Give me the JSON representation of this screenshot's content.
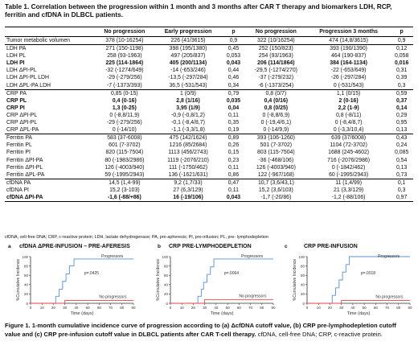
{
  "table_caption": "Table 1. Correlation between the progression within 1 month and 3 months after CAR T therapy and biomarkers LDH, RCP, ferritin and cfDNA in DLBCL patients.",
  "headers": [
    "",
    "No progression",
    "Early progression",
    "p",
    "No progression",
    "Progression 3 months",
    "p"
  ],
  "rows": [
    {
      "label": "Tumor metabolic volumen",
      "v": [
        "378 (10-16254)",
        "226 (41/3615)",
        "0,9",
        "322 (10/16254)",
        "474 (14,8/3615)",
        "0,9"
      ],
      "sep": true,
      "bold": false
    },
    {
      "label": "LDH PA",
      "v": [
        "271 (150-1198)",
        "398 (195/1380)",
        "0,45",
        "252 (150/823)",
        "393 (190/1390)",
        "0,12"
      ],
      "sep": true,
      "bold": false
    },
    {
      "label": "LDH PL",
      "v": [
        "258 (93-1963)",
        "497 (205/837)",
        "0,053",
        "254 (93/1963)",
        "464 (190-837)",
        "0,058"
      ],
      "sep": false,
      "bold": false
    },
    {
      "label": "LDH PI",
      "v": [
        "225 (114-1864)",
        "405 (200/1134)",
        "0,043",
        "206 (114/1864)",
        "384 (164-1134)",
        "0,016"
      ],
      "sep": false,
      "bold": true
    },
    {
      "label": "LDH ΔPI-PL",
      "v": [
        "-32 (-1274/649)",
        "-14 (-653/246)",
        "0,44",
        "-29,5 (-1274/270)",
        "-22 (-653/649)",
        "0,31"
      ],
      "sep": false,
      "bold": false
    },
    {
      "label": "LDH ΔPI-PL LDH",
      "v": [
        "-29 (-279/256)",
        "-13,5 (-297/284)",
        "0,46",
        "-37 (-279/232)",
        "-26 (-297/284)",
        "0,39"
      ],
      "sep": false,
      "bold": false
    },
    {
      "label": "LDH ΔPL-PA LDH",
      "v": [
        "-7 (-1373/393)",
        "36,5 (-531/543)",
        "0,34",
        "-6 (-1373/254)",
        "0 (-531/543)",
        "0,3"
      ],
      "sep": false,
      "bold": false
    },
    {
      "label": "CRP PA",
      "v": [
        "0,85 (0-15)",
        "1 (0/9)",
        "0,79",
        "0,8 (0/7)",
        "1,1 (0/15)",
        "0,59"
      ],
      "sep": true,
      "bold": false
    },
    {
      "label": "CRP PL",
      "v": [
        "0,4 (0-16)",
        "2,8 (1/16)",
        "0,035",
        "0,4 (0/16)",
        "2 (0-16)",
        "0,37"
      ],
      "sep": false,
      "bold": true
    },
    {
      "label": "CRP PI",
      "v": [
        "1,3 (0-25)",
        "3,95 (1/9)",
        "0,04",
        "0,8 (0/25)",
        "2,2 (1-9)",
        "0,14"
      ],
      "sep": false,
      "bold": true
    },
    {
      "label": "CRP ΔPI-PL",
      "v": [
        "0 (-8,8/11,9)",
        "-0,9 (-0,8/1,2)",
        "0,11",
        "0 (-8,8/6,9)",
        "0,8 (-8/11)",
        "0,29"
      ],
      "sep": false,
      "bold": false
    },
    {
      "label": "CRP ΔPI-PL",
      "v": [
        "-29 (-279/256)",
        "-0,1 (-8,4/8,7)",
        "0,35",
        "0 (-19,4/6,1)",
        "0 (-8,4/8,7)",
        "0,95"
      ],
      "sep": false,
      "bold": false
    },
    {
      "label": "CRP ΔPL-PA",
      "v": [
        "0 (-14/10)",
        "-1,1 (-3,3/1,8)",
        "0,19",
        "0 (-14/9,9)",
        "0 (-3,3/10,4)",
        "0,13"
      ],
      "sep": false,
      "bold": false
    },
    {
      "label": "Ferritin PA",
      "v": [
        "583 (37-6008)",
        "475 (142/1624)",
        "0,89",
        "393 (106-1260)",
        "639 (37/6008)",
        "0,43"
      ],
      "sep": true,
      "bold": false
    },
    {
      "label": "Ferritin PL",
      "v": [
        "601 (7-3702)",
        "1216 (85/2684)",
        "0,26",
        "501 (7-3702)",
        "1104 (72-3702)",
        "0,24"
      ],
      "sep": false,
      "bold": false
    },
    {
      "label": "Ferritin PI",
      "v": [
        "820 (115-7504)",
        "1113 (456/2743)",
        "0,15",
        "803 (115-7504)",
        "1688 (245-4602)",
        "0,085"
      ],
      "sep": false,
      "bold": false
    },
    {
      "label": "Ferritin ΔPI-PA",
      "v": [
        "80 (-1983/2986)",
        "1119 (-2076/210)",
        "0,23",
        "-36 (-468/106)",
        "716 (-2076/2986)",
        "0,54"
      ],
      "sep": false,
      "bold": false
    },
    {
      "label": "Ferritin ΔPI-PL",
      "v": [
        "126 (-4003/940)",
        "111 (-1750/462)",
        "0,11",
        "126 (-4003/940)",
        "0 (-1842/462)",
        "0,13"
      ],
      "sep": false,
      "bold": false
    },
    {
      "label": "Ferritin ΔPL-PA",
      "v": [
        "59 (-1995/2943)",
        "136 (-1621/631)",
        "0,86",
        "122 (-967/168)",
        "60 (-1995/2943)",
        "0,73"
      ],
      "sep": false,
      "bold": false
    },
    {
      "label": "cfDNA PA",
      "v": [
        "14,5 (1,4-99)",
        "9,2 (1,7/33)",
        "0,47",
        "10,7 (3,6/43,1)",
        "11 (1,4/99)",
        "0,1"
      ],
      "sep": true,
      "bold": false
    },
    {
      "label": "cfDNA PI",
      "v": [
        "15,2 (3-103)",
        "27 (6,3/129)",
        "0,11",
        "15,2 (3,6/103)",
        "21 (3,3/129)",
        "0,3"
      ],
      "sep": false,
      "bold": false
    },
    {
      "label": "cfDNA ΔPI-PA",
      "v": [
        "-1,6 (-88/+86)",
        "16 (-19/106)",
        "0,043",
        "-1,7 (-20/86)",
        "-1,2 (-88/106)",
        "0,97"
      ],
      "sep": false,
      "bold": true,
      "partial_bold": [
        0,
        1,
        2
      ]
    }
  ],
  "abbreviations": "cfDNA, cell-free DNA; CRP, c-reactive protein; LDH, lactate dehydrogenase; PA, pre-apheresis; PI, pre-infusion; PL, pre- lymphodepletion",
  "chart_data": [
    {
      "type": "line",
      "letter": "a",
      "title": "cfDNA ΔPRE-INFUSION – PRE-AFERESIS",
      "ylabel": "%Cumulative Incidence",
      "xlabel": "Time (days)",
      "xlim": [
        0,
        90
      ],
      "ylim": [
        0,
        100
      ],
      "xticks": [
        0,
        10,
        20,
        30,
        40,
        50,
        60,
        70,
        80,
        90
      ],
      "yticks": [
        0,
        20,
        40,
        60,
        80,
        100
      ],
      "pvalue": "p=.0425",
      "series": [
        {
          "name": "Progressors",
          "color": "#5b8fd4",
          "x": [
            0,
            22,
            22,
            25,
            25,
            28,
            28,
            31,
            31,
            34,
            34,
            38,
            38,
            90
          ],
          "y": [
            0,
            0,
            15,
            15,
            30,
            30,
            47,
            47,
            63,
            63,
            80,
            80,
            95,
            95
          ]
        },
        {
          "name": "No progressors",
          "color": "#e04444",
          "x": [
            0,
            30,
            30,
            90
          ],
          "y": [
            0,
            0,
            6,
            6
          ]
        }
      ]
    },
    {
      "type": "line",
      "letter": "b",
      "title": "CRP PRE-LYMPHODEPLETION",
      "ylabel": "%Cumulative Incidence",
      "xlabel": "Time (days)",
      "xlim": [
        0,
        90
      ],
      "ylim": [
        0,
        100
      ],
      "xticks": [
        0,
        10,
        20,
        30,
        40,
        50,
        60,
        70,
        80,
        90
      ],
      "yticks": [
        0,
        20,
        40,
        60,
        80,
        100
      ],
      "pvalue": "p=.0064",
      "series": [
        {
          "name": "Progressors",
          "color": "#5b8fd4",
          "x": [
            0,
            24,
            24,
            27,
            27,
            29,
            29,
            32,
            32,
            35,
            35,
            38,
            38,
            90
          ],
          "y": [
            0,
            0,
            15,
            15,
            30,
            30,
            45,
            45,
            62,
            62,
            78,
            78,
            95,
            95
          ]
        },
        {
          "name": "No progressors",
          "color": "#e04444",
          "x": [
            0,
            30,
            30,
            90
          ],
          "y": [
            0,
            0,
            8,
            8
          ]
        }
      ]
    },
    {
      "type": "line",
      "letter": "c",
      "title": "CRP PRE-INFUSION",
      "ylabel": "%Cumulative Incidence",
      "xlabel": "Time (days)",
      "xlim": [
        0,
        90
      ],
      "ylim": [
        0,
        100
      ],
      "xticks": [
        0,
        10,
        20,
        30,
        40,
        50,
        60,
        70,
        80,
        90
      ],
      "yticks": [
        0,
        20,
        40,
        60,
        80,
        100
      ],
      "pvalue": "p=.0018",
      "series": [
        {
          "name": "Progressors",
          "color": "#5b8fd4",
          "x": [
            0,
            22,
            22,
            25,
            25,
            28,
            28,
            31,
            31,
            34,
            34,
            37,
            37,
            90
          ],
          "y": [
            0,
            0,
            17,
            17,
            33,
            33,
            50,
            50,
            67,
            67,
            83,
            83,
            100,
            100
          ]
        },
        {
          "name": "No progressors",
          "color": "#e04444",
          "x": [
            0,
            30,
            30,
            90
          ],
          "y": [
            0,
            0,
            6,
            6
          ]
        }
      ]
    }
  ],
  "figure_caption_bold": "Figure 1. 1-month cumulative incidence curve of progression according to (a) ΔcfDNA cutoff value, (b) CRP pre-lymphodepletion cutoff value and (c) CRP pre-infusion cutoff value in DLBCL patients after CAR T-cell therapy.",
  "figure_caption_normal": " cfDNA, cell-free DNA; CRP, c-reactive protein."
}
